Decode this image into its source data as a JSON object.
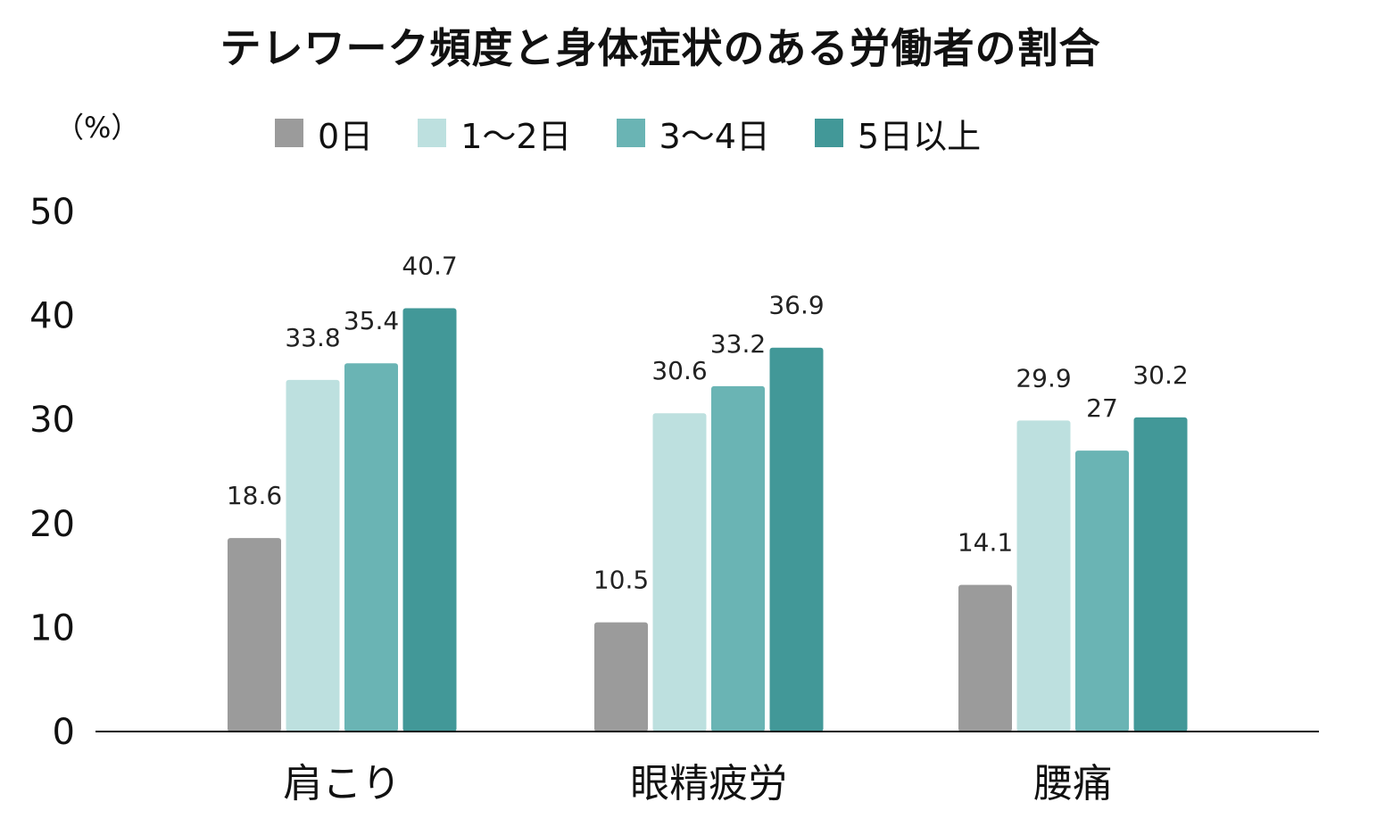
{
  "chart_data": {
    "type": "bar",
    "title": "テレワーク頻度と身体症状のある労働者の割合",
    "unit_label": "（%）",
    "categories": [
      "肩こり",
      "眼精疲労",
      "腰痛"
    ],
    "series": [
      {
        "name": "0日",
        "color": "#9b9b9b",
        "values": [
          18.6,
          10.5,
          14.1
        ]
      },
      {
        "name": "1〜2日",
        "color": "#bde0df",
        "values": [
          33.8,
          30.6,
          29.9
        ]
      },
      {
        "name": "3〜4日",
        "color": "#6ab4b4",
        "values": [
          35.4,
          33.2,
          27
        ]
      },
      {
        "name": "5日以上",
        "color": "#429898",
        "values": [
          40.7,
          36.9,
          30.2
        ]
      }
    ],
    "value_labels": [
      [
        "18.6",
        "10.5",
        "14.1"
      ],
      [
        "33.8",
        "30.6",
        "29.9"
      ],
      [
        "35.4",
        "33.2",
        "27"
      ],
      [
        "40.7",
        "36.9",
        "30.2"
      ]
    ],
    "ylim": [
      0,
      50
    ],
    "yticks": [
      {
        "value": 0,
        "label": "0"
      },
      {
        "value": 10,
        "label": "10"
      },
      {
        "value": 20,
        "label": "20"
      },
      {
        "value": 30,
        "label": "30"
      },
      {
        "value": 40,
        "label": "40"
      },
      {
        "value": 50,
        "label": "50"
      }
    ],
    "legend_position": "top",
    "grid": false
  }
}
